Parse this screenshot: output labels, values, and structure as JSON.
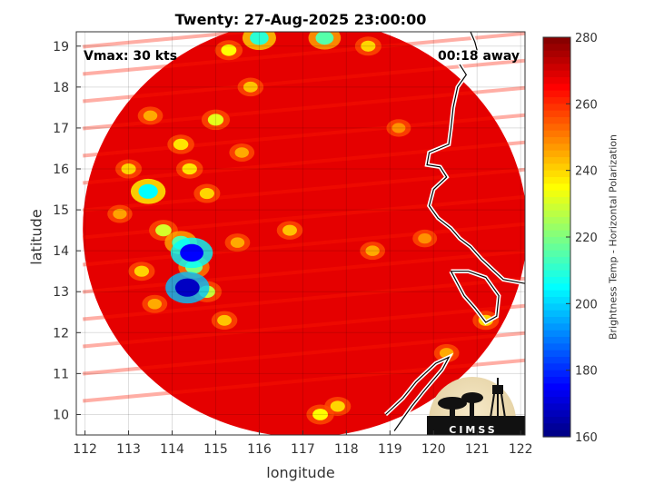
{
  "chart_data": {
    "type": "heatmap",
    "title": "Twenty: 27-Aug-2025 23:00:00",
    "xlabel": "longitude",
    "ylabel": "latitude",
    "xlim": [
      111.8,
      122.1
    ],
    "ylim": [
      9.5,
      19.35
    ],
    "xticks": [
      112,
      113,
      114,
      115,
      116,
      117,
      118,
      119,
      120,
      121,
      122
    ],
    "yticks": [
      10,
      11,
      12,
      13,
      14,
      15,
      16,
      17,
      18,
      19
    ],
    "grid": true,
    "annotations": {
      "vmax": "Vmax: 30 kts",
      "time_away": "00:18 away"
    },
    "colorbar": {
      "label": "Brightness Temp - Horizontal Polarization",
      "range": [
        160,
        280
      ],
      "ticks": [
        160,
        180,
        200,
        220,
        240,
        260,
        280
      ],
      "colormap": "jet"
    },
    "swath": {
      "center": [
        117.05,
        14.55
      ],
      "radius_deg": 5.1,
      "background_value": 268
    },
    "features": [
      {
        "lon": 114.45,
        "lat": 13.95,
        "value": 175
      },
      {
        "lon": 114.35,
        "lat": 13.1,
        "value": 168
      },
      {
        "lon": 113.45,
        "lat": 15.45,
        "value": 205
      },
      {
        "lon": 114.2,
        "lat": 14.2,
        "value": 215
      },
      {
        "lon": 114.5,
        "lat": 13.6,
        "value": 220
      },
      {
        "lon": 113.8,
        "lat": 14.5,
        "value": 230
      },
      {
        "lon": 114.8,
        "lat": 13.0,
        "value": 228
      },
      {
        "lon": 113.3,
        "lat": 13.5,
        "value": 240
      },
      {
        "lon": 113.6,
        "lat": 12.7,
        "value": 245
      },
      {
        "lon": 116.0,
        "lat": 19.2,
        "value": 210
      },
      {
        "lon": 117.5,
        "lat": 19.2,
        "value": 215
      },
      {
        "lon": 115.3,
        "lat": 18.9,
        "value": 235
      },
      {
        "lon": 118.5,
        "lat": 19.0,
        "value": 240
      },
      {
        "lon": 115.0,
        "lat": 17.2,
        "value": 232
      },
      {
        "lon": 114.2,
        "lat": 16.6,
        "value": 238
      },
      {
        "lon": 114.8,
        "lat": 15.4,
        "value": 240
      },
      {
        "lon": 114.4,
        "lat": 16.0,
        "value": 238
      },
      {
        "lon": 113.0,
        "lat": 16.0,
        "value": 240
      },
      {
        "lon": 115.8,
        "lat": 18.0,
        "value": 242
      },
      {
        "lon": 117.4,
        "lat": 10.0,
        "value": 235
      },
      {
        "lon": 117.8,
        "lat": 10.2,
        "value": 240
      },
      {
        "lon": 116.7,
        "lat": 14.5,
        "value": 242
      },
      {
        "lon": 115.5,
        "lat": 14.2,
        "value": 245
      },
      {
        "lon": 115.2,
        "lat": 12.3,
        "value": 242
      },
      {
        "lon": 121.2,
        "lat": 12.3,
        "value": 240
      },
      {
        "lon": 120.3,
        "lat": 11.5,
        "value": 245
      },
      {
        "lon": 115.6,
        "lat": 16.4,
        "value": 245
      },
      {
        "lon": 118.6,
        "lat": 14.0,
        "value": 245
      },
      {
        "lon": 119.2,
        "lat": 17.0,
        "value": 248
      },
      {
        "lon": 113.5,
        "lat": 17.3,
        "value": 245
      },
      {
        "lon": 119.8,
        "lat": 14.3,
        "value": 248
      },
      {
        "lon": 112.8,
        "lat": 14.9,
        "value": 246
      }
    ]
  },
  "logo_text": "CIMSS"
}
